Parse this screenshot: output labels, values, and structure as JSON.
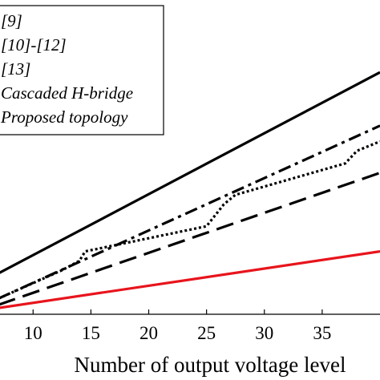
{
  "chart_data": {
    "type": "line",
    "title": "",
    "xlabel": "Number of output voltage level",
    "ylabel": "",
    "xlim": [
      7,
      40
    ],
    "ylim": [
      0,
      100
    ],
    "x_ticks": [
      10,
      15,
      20,
      25,
      30,
      35
    ],
    "grid": false,
    "legend_position": "top-left",
    "series": [
      {
        "name": "[9]",
        "style": "solid",
        "color": "#000000",
        "x": [
          7,
          40
        ],
        "y": [
          13,
          77
        ]
      },
      {
        "name": "[10]-[12]",
        "style": "dashdot",
        "color": "#000000",
        "x": [
          7,
          40
        ],
        "y": [
          5,
          60
        ]
      },
      {
        "name": "[13]",
        "style": "dotted",
        "color": "#000000",
        "x": [
          7,
          12.5,
          14,
          14.5,
          25,
          26.5,
          27.5,
          37,
          38,
          40
        ],
        "y": [
          5,
          14,
          17,
          20,
          28,
          35,
          38,
          48,
          52,
          55
        ]
      },
      {
        "name": "Cascaded H-bridge",
        "style": "dashed",
        "color": "#000000",
        "x": [
          7,
          40
        ],
        "y": [
          3,
          45
        ]
      },
      {
        "name": "Proposed topology",
        "style": "solid",
        "color": "#e8141c",
        "x": [
          7,
          40
        ],
        "y": [
          2,
          20
        ]
      }
    ]
  }
}
